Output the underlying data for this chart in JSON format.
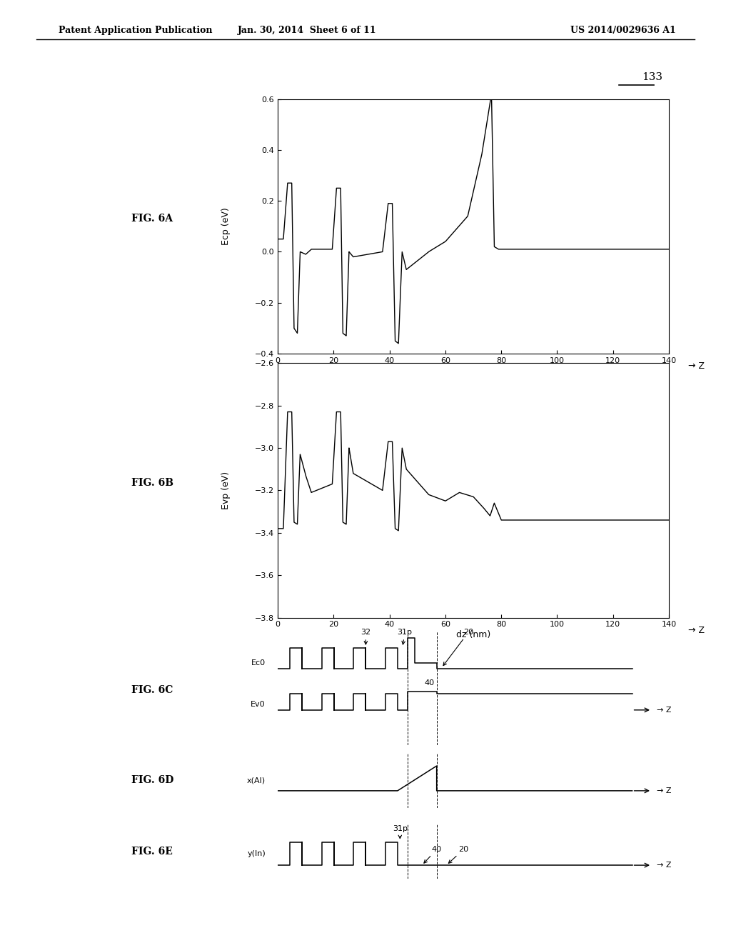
{
  "header_left": "Patent Application Publication",
  "header_center": "Jan. 30, 2014  Sheet 6 of 11",
  "header_right": "US 2014/0029636 A1",
  "label_133": "133",
  "fig6A_label": "FIG. 6A",
  "fig6B_label": "FIG. 6B",
  "fig6C_label": "FIG. 6C",
  "fig6D_label": "FIG. 6D",
  "fig6E_label": "FIG. 6E",
  "fig6A_ylabel": "Ecp (eV)",
  "fig6B_ylabel": "Evp (eV)",
  "fig6C_label_ec0": "Ec0",
  "fig6C_label_ev0": "Ev0",
  "fig6D_ylabel": "x(Al)",
  "fig6E_ylabel": "y(In)",
  "xlabel": "dz (nm)",
  "zlabel": "→ Z",
  "fig6A_ylim": [
    -0.4,
    0.6
  ],
  "fig6A_yticks": [
    -0.4,
    -0.2,
    0,
    0.2,
    0.4,
    0.6
  ],
  "fig6B_ylim": [
    -3.8,
    -2.6
  ],
  "fig6B_yticks": [
    -3.8,
    -3.6,
    -3.4,
    -3.2,
    -3.0,
    -2.8,
    -2.6
  ],
  "xlim": [
    0,
    140
  ],
  "xticks": [
    0,
    20,
    40,
    60,
    80,
    100,
    120,
    140
  ],
  "background": "#ffffff",
  "line_color": "#000000"
}
